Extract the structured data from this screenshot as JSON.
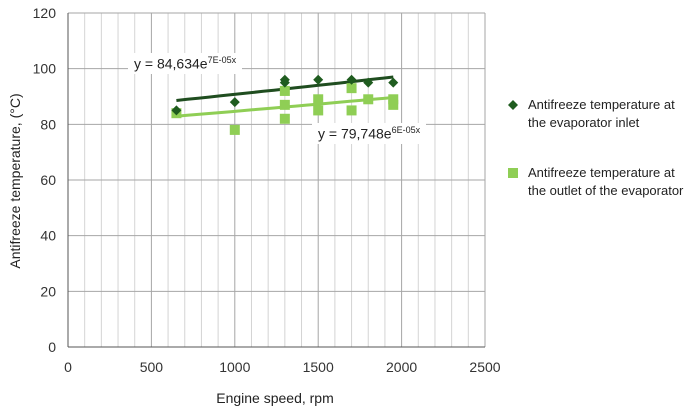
{
  "chart_data": {
    "type": "scatter",
    "xlabel": "Engine speed, rpm",
    "ylabel": "Antifreeze temperature, (°C)",
    "xlim": [
      0,
      2500
    ],
    "ylim": [
      0,
      120
    ],
    "x_ticks": [
      0,
      500,
      1000,
      1500,
      2000,
      2500
    ],
    "y_ticks": [
      0,
      20,
      40,
      60,
      80,
      100,
      120
    ],
    "x_minor_step": 100,
    "grid": true,
    "legend_position": "right",
    "series": [
      {
        "name": "Antifreeze temperature at the evaporator inlet",
        "marker": "diamond",
        "color": "#1f5c1f",
        "trendline_color": "#1f4d1f",
        "x": [
          650,
          1000,
          1300,
          1300,
          1500,
          1700,
          1800,
          1950
        ],
        "y": [
          85,
          88,
          95,
          96,
          96,
          96,
          95,
          95
        ],
        "trendline": {
          "type": "exponential",
          "equation": "y = 84,634e",
          "exponent": "7E-05x",
          "a": 84.634,
          "b": 7e-05,
          "x_range": [
            650,
            1950
          ]
        }
      },
      {
        "name": "Antifreeze temperature at the outlet of the evaporator",
        "marker": "square",
        "color": "#8fce55",
        "trendline_color": "#8fce55",
        "x": [
          650,
          1000,
          1300,
          1300,
          1300,
          1500,
          1500,
          1700,
          1700,
          1800,
          1950,
          1950
        ],
        "y": [
          84,
          78,
          82,
          87,
          92,
          85,
          89,
          85,
          93,
          89,
          87,
          89
        ],
        "trendline": {
          "type": "exponential",
          "equation": "y = 79,748e",
          "exponent": "6E-05x",
          "a": 79.748,
          "b": 6e-05,
          "x_range": [
            650,
            1950
          ]
        }
      }
    ]
  }
}
